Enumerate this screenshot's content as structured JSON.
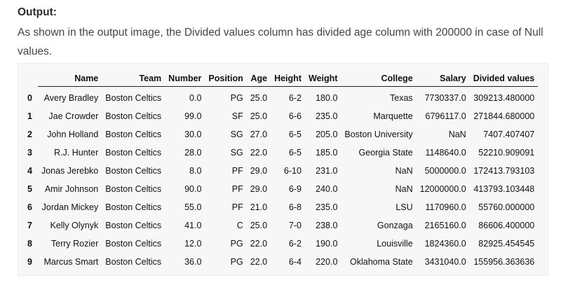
{
  "heading": "Output:",
  "description": "As shown in the output image, the Divided values column has divided age column with 200000 in case of Null values.",
  "table": {
    "columns": [
      "Name",
      "Team",
      "Number",
      "Position",
      "Age",
      "Height",
      "Weight",
      "College",
      "Salary",
      "Divided values"
    ],
    "rows": [
      {
        "index": "0",
        "cells": [
          "Avery Bradley",
          "Boston Celtics",
          "0.0",
          "PG",
          "25.0",
          "6-2",
          "180.0",
          "Texas",
          "7730337.0",
          "309213.480000"
        ]
      },
      {
        "index": "1",
        "cells": [
          "Jae Crowder",
          "Boston Celtics",
          "99.0",
          "SF",
          "25.0",
          "6-6",
          "235.0",
          "Marquette",
          "6796117.0",
          "271844.680000"
        ]
      },
      {
        "index": "2",
        "cells": [
          "John Holland",
          "Boston Celtics",
          "30.0",
          "SG",
          "27.0",
          "6-5",
          "205.0",
          "Boston University",
          "NaN",
          "7407.407407"
        ]
      },
      {
        "index": "3",
        "cells": [
          "R.J. Hunter",
          "Boston Celtics",
          "28.0",
          "SG",
          "22.0",
          "6-5",
          "185.0",
          "Georgia State",
          "1148640.0",
          "52210.909091"
        ]
      },
      {
        "index": "4",
        "cells": [
          "Jonas Jerebko",
          "Boston Celtics",
          "8.0",
          "PF",
          "29.0",
          "6-10",
          "231.0",
          "NaN",
          "5000000.0",
          "172413.793103"
        ]
      },
      {
        "index": "5",
        "cells": [
          "Amir Johnson",
          "Boston Celtics",
          "90.0",
          "PF",
          "29.0",
          "6-9",
          "240.0",
          "NaN",
          "12000000.0",
          "413793.103448"
        ]
      },
      {
        "index": "6",
        "cells": [
          "Jordan Mickey",
          "Boston Celtics",
          "55.0",
          "PF",
          "21.0",
          "6-8",
          "235.0",
          "LSU",
          "1170960.0",
          "55760.000000"
        ]
      },
      {
        "index": "7",
        "cells": [
          "Kelly Olynyk",
          "Boston Celtics",
          "41.0",
          "C",
          "25.0",
          "7-0",
          "238.0",
          "Gonzaga",
          "2165160.0",
          "86606.400000"
        ]
      },
      {
        "index": "8",
        "cells": [
          "Terry Rozier",
          "Boston Celtics",
          "12.0",
          "PG",
          "22.0",
          "6-2",
          "190.0",
          "Louisville",
          "1824360.0",
          "82925.454545"
        ]
      },
      {
        "index": "9",
        "cells": [
          "Marcus Smart",
          "Boston Celtics",
          "36.0",
          "PG",
          "22.0",
          "6-4",
          "220.0",
          "Oklahoma State",
          "3431040.0",
          "155956.363636"
        ]
      }
    ]
  }
}
